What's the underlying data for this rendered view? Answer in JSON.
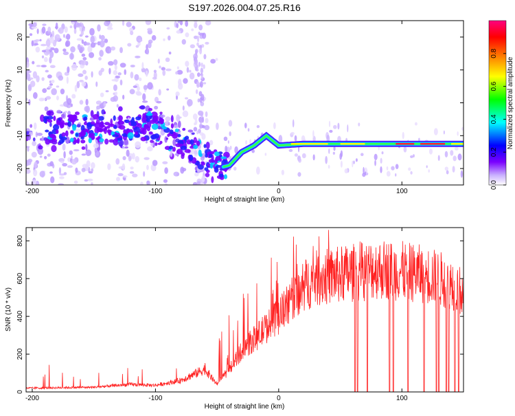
{
  "chart_data": [
    {
      "type": "heatmap",
      "title": "S197.2026.004.07.25.R16",
      "xlabel": "Height of straight line (km)",
      "ylabel": "Frequency (Hz)",
      "xlim": [
        -205,
        150
      ],
      "ylim": [
        -25,
        25
      ],
      "xticks": [
        -200,
        -100,
        0,
        100
      ],
      "yticks": [
        -20,
        -10,
        0,
        10,
        20
      ],
      "colorbar": {
        "label": "Normalized spectral amplitude",
        "range": [
          0,
          1
        ],
        "ticks": [
          "0.0",
          "0.2",
          "0.4",
          "0.6",
          "0.8"
        ],
        "colors": [
          "#ffffff",
          "#7a00ff",
          "#0000ff",
          "#00ffff",
          "#00ff00",
          "#ffff00",
          "#ff8000",
          "#ff0000",
          "#ff0080"
        ]
      },
      "ridge": {
        "x": [
          -135,
          -120,
          -100,
          -90,
          -70,
          -55,
          -45,
          -40,
          -30,
          -20,
          -10,
          0,
          20,
          60,
          100,
          150
        ],
        "freq": [
          -8,
          -7.5,
          -7,
          -10,
          -14,
          -18,
          -19.5,
          -19,
          -15,
          -13,
          -10,
          -13,
          -12.5,
          -12.5,
          -12.5,
          -12.5
        ]
      }
    },
    {
      "type": "line",
      "xlabel": "Height of straight line (km)",
      "ylabel": "SNR (10 * v/v)",
      "xlim": [
        -205,
        150
      ],
      "ylim": [
        0,
        870
      ],
      "xticks": [
        -200,
        -100,
        0,
        100
      ],
      "yticks": [
        0,
        200,
        400,
        600,
        800
      ],
      "color": "#ff2020",
      "envelope": {
        "x": [
          -205,
          -150,
          -120,
          -100,
          -80,
          -60,
          -50,
          -40,
          -30,
          -20,
          -10,
          0,
          10,
          20,
          30,
          50,
          80,
          100,
          120,
          140,
          150
        ],
        "y": [
          20,
          25,
          40,
          35,
          60,
          120,
          40,
          120,
          220,
          280,
          340,
          400,
          480,
          560,
          600,
          620,
          650,
          640,
          620,
          580,
          520
        ]
      },
      "dropouts": [
        62,
        64,
        72,
        90,
        93,
        105,
        118,
        128,
        130,
        136,
        138,
        143,
        146
      ]
    }
  ]
}
